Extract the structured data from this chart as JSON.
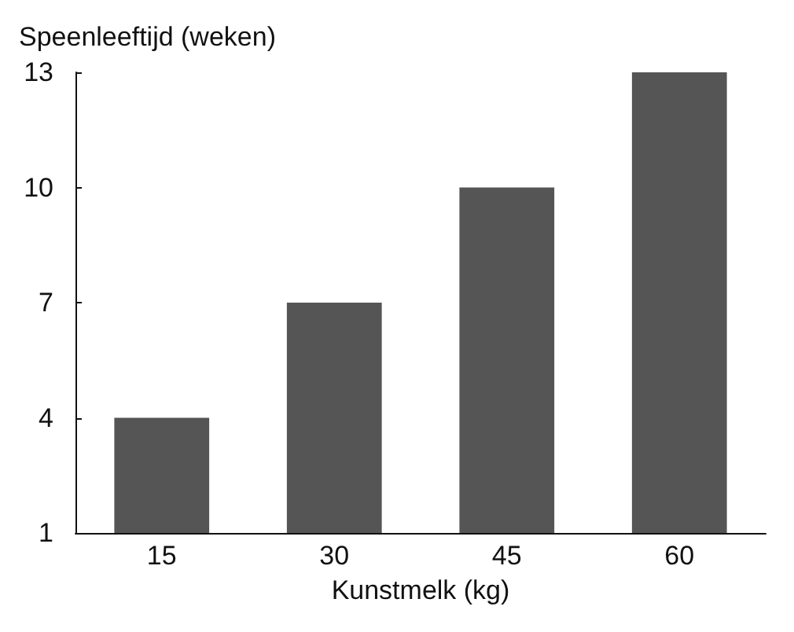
{
  "chart_data": {
    "type": "bar",
    "xlabel": "Kunstmelk (kg)",
    "ylabel": "Speenleeftijd (weken)",
    "categories": [
      "15",
      "30",
      "45",
      "60"
    ],
    "values": [
      4,
      7,
      10,
      13
    ],
    "color": "#555555",
    "ylim": [
      1,
      13
    ],
    "yticks": [
      1,
      4,
      7,
      10,
      13
    ],
    "grid": false
  }
}
